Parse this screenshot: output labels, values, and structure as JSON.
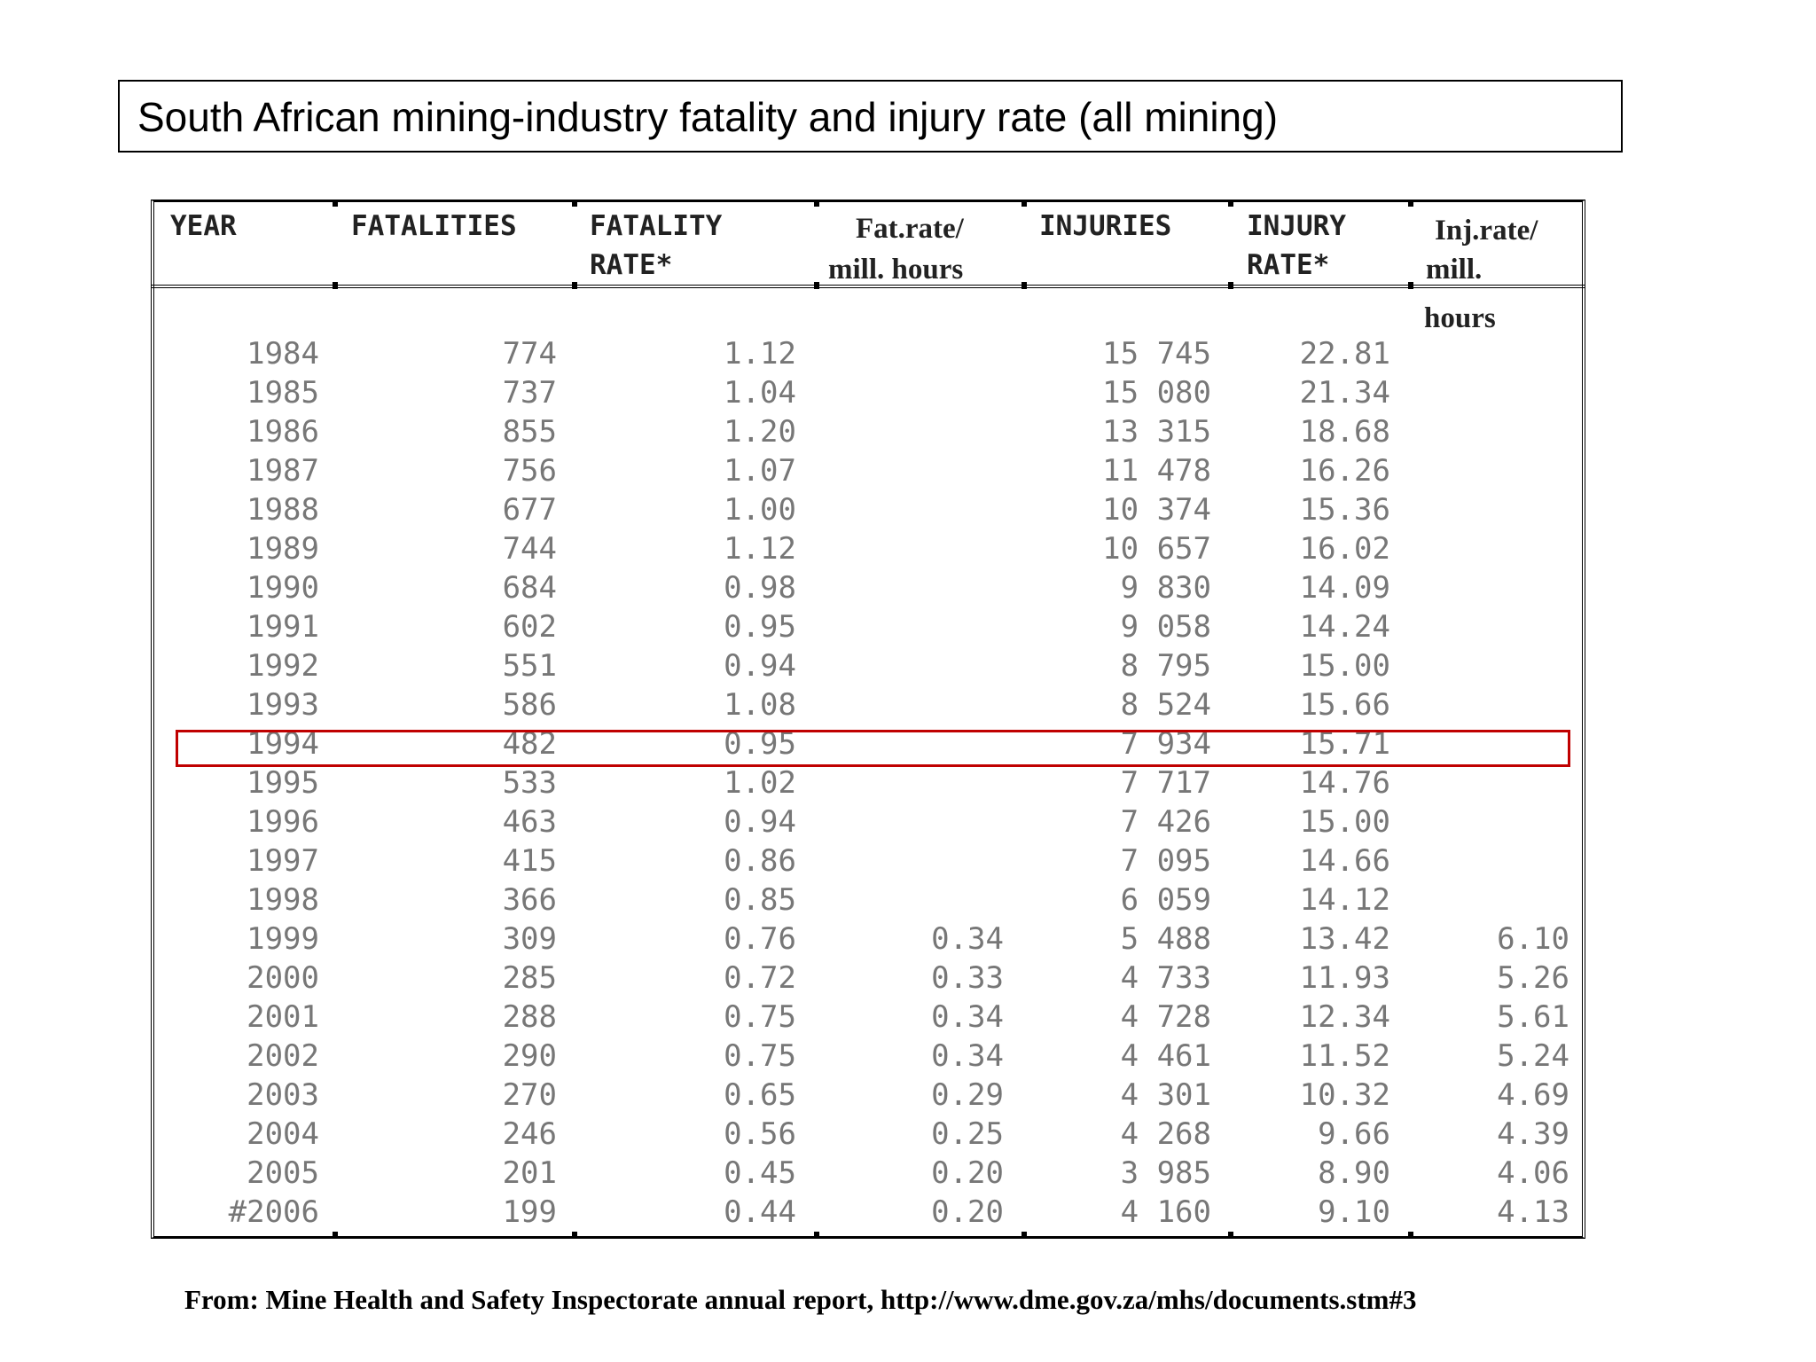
{
  "title": "South African mining-industry fatality and injury rate (all mining)",
  "table": {
    "headers": {
      "year": "YEAR",
      "fatalities": "FATALITIES",
      "fatality_rate_1": "FATALITY",
      "fatality_rate_2": "RATE*",
      "fat_mill_1": "Fat.rate/",
      "fat_mill_2": "mill. hours",
      "injuries": "INJURIES",
      "injury_rate_1": "INJURY",
      "injury_rate_2": "RATE*",
      "inj_mill_1": "Inj.rate/",
      "inj_mill_2": "mill.",
      "inj_mill_3": "hours"
    },
    "rows": [
      {
        "year": "1984",
        "fatalities": "774",
        "fatality_rate": "1.12",
        "fat_mill": "",
        "injuries": "15 745",
        "injury_rate": "22.81",
        "inj_mill": ""
      },
      {
        "year": "1985",
        "fatalities": "737",
        "fatality_rate": "1.04",
        "fat_mill": "",
        "injuries": "15 080",
        "injury_rate": "21.34",
        "inj_mill": ""
      },
      {
        "year": "1986",
        "fatalities": "855",
        "fatality_rate": "1.20",
        "fat_mill": "",
        "injuries": "13 315",
        "injury_rate": "18.68",
        "inj_mill": ""
      },
      {
        "year": "1987",
        "fatalities": "756",
        "fatality_rate": "1.07",
        "fat_mill": "",
        "injuries": "11 478",
        "injury_rate": "16.26",
        "inj_mill": ""
      },
      {
        "year": "1988",
        "fatalities": "677",
        "fatality_rate": "1.00",
        "fat_mill": "",
        "injuries": "10 374",
        "injury_rate": "15.36",
        "inj_mill": ""
      },
      {
        "year": "1989",
        "fatalities": "744",
        "fatality_rate": "1.12",
        "fat_mill": "",
        "injuries": "10 657",
        "injury_rate": "16.02",
        "inj_mill": ""
      },
      {
        "year": "1990",
        "fatalities": "684",
        "fatality_rate": "0.98",
        "fat_mill": "",
        "injuries": "9 830",
        "injury_rate": "14.09",
        "inj_mill": ""
      },
      {
        "year": "1991",
        "fatalities": "602",
        "fatality_rate": "0.95",
        "fat_mill": "",
        "injuries": "9 058",
        "injury_rate": "14.24",
        "inj_mill": ""
      },
      {
        "year": "1992",
        "fatalities": "551",
        "fatality_rate": "0.94",
        "fat_mill": "",
        "injuries": "8 795",
        "injury_rate": "15.00",
        "inj_mill": ""
      },
      {
        "year": "1993",
        "fatalities": "586",
        "fatality_rate": "1.08",
        "fat_mill": "",
        "injuries": "8 524",
        "injury_rate": "15.66",
        "inj_mill": ""
      },
      {
        "year": "1994",
        "fatalities": "482",
        "fatality_rate": "0.95",
        "fat_mill": "",
        "injuries": "7 934",
        "injury_rate": "15.71",
        "inj_mill": ""
      },
      {
        "year": "1995",
        "fatalities": "533",
        "fatality_rate": "1.02",
        "fat_mill": "",
        "injuries": "7 717",
        "injury_rate": "14.76",
        "inj_mill": ""
      },
      {
        "year": "1996",
        "fatalities": "463",
        "fatality_rate": "0.94",
        "fat_mill": "",
        "injuries": "7 426",
        "injury_rate": "15.00",
        "inj_mill": ""
      },
      {
        "year": "1997",
        "fatalities": "415",
        "fatality_rate": "0.86",
        "fat_mill": "",
        "injuries": "7 095",
        "injury_rate": "14.66",
        "inj_mill": ""
      },
      {
        "year": "1998",
        "fatalities": "366",
        "fatality_rate": "0.85",
        "fat_mill": "",
        "injuries": "6 059",
        "injury_rate": "14.12",
        "inj_mill": ""
      },
      {
        "year": "1999",
        "fatalities": "309",
        "fatality_rate": "0.76",
        "fat_mill": "0.34",
        "injuries": "5 488",
        "injury_rate": "13.42",
        "inj_mill": "6.10"
      },
      {
        "year": "2000",
        "fatalities": "285",
        "fatality_rate": "0.72",
        "fat_mill": "0.33",
        "injuries": "4 733",
        "injury_rate": "11.93",
        "inj_mill": "5.26"
      },
      {
        "year": "2001",
        "fatalities": "288",
        "fatality_rate": "0.75",
        "fat_mill": "0.34",
        "injuries": "4 728",
        "injury_rate": "12.34",
        "inj_mill": "5.61"
      },
      {
        "year": "2002",
        "fatalities": "290",
        "fatality_rate": "0.75",
        "fat_mill": "0.34",
        "injuries": "4 461",
        "injury_rate": "11.52",
        "inj_mill": "5.24"
      },
      {
        "year": "2003",
        "fatalities": "270",
        "fatality_rate": "0.65",
        "fat_mill": "0.29",
        "injuries": "4 301",
        "injury_rate": "10.32",
        "inj_mill": "4.69"
      },
      {
        "year": "2004",
        "fatalities": "246",
        "fatality_rate": "0.56",
        "fat_mill": "0.25",
        "injuries": "4 268",
        "injury_rate": "9.66",
        "inj_mill": "4.39"
      },
      {
        "year": "2005",
        "fatalities": "201",
        "fatality_rate": "0.45",
        "fat_mill": "0.20",
        "injuries": "3 985",
        "injury_rate": "8.90",
        "inj_mill": "4.06"
      },
      {
        "year": "#2006",
        "fatalities": "199",
        "fatality_rate": "0.44",
        "fat_mill": "0.20",
        "injuries": "4 160",
        "injury_rate": "9.10",
        "inj_mill": "4.13"
      }
    ],
    "highlighted_year": "1994",
    "highlight_color": "#c00000"
  },
  "source": "From: Mine Health and Safety Inspectorate annual report, http://www.dme.gov.za/mhs/documents.stm#3"
}
